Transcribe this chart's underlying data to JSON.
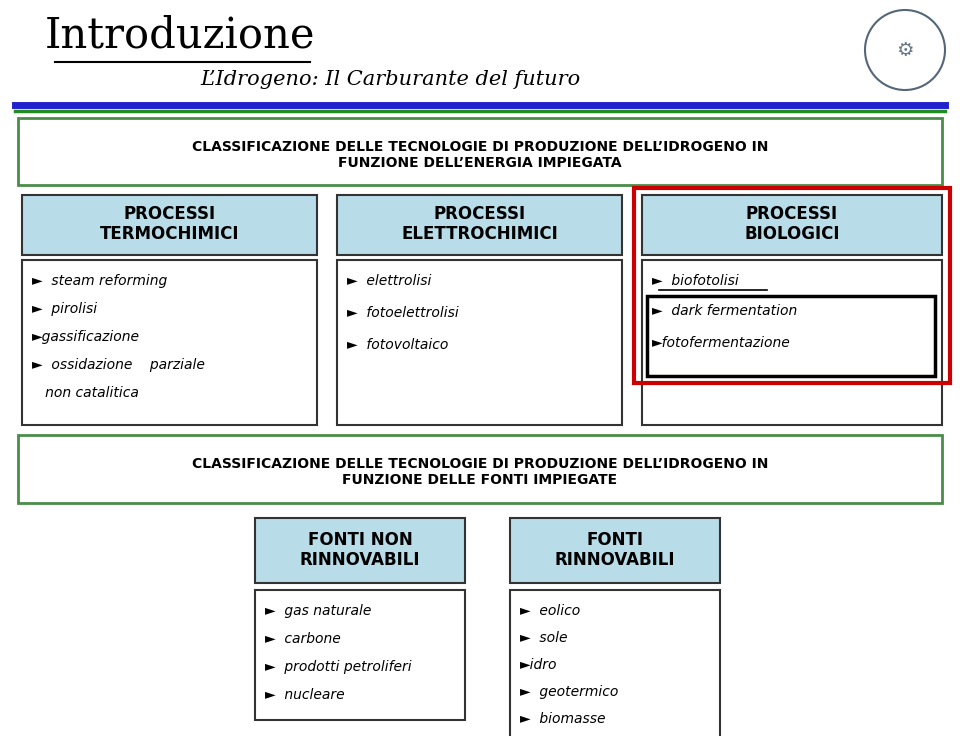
{
  "title": "Introduzione",
  "subtitle": "L’Idrogeno: Il Carburante del futuro",
  "bg_color": "#FFFFFF",
  "blue_line_color": "#2222CC",
  "green_line_color": "#228B22",
  "box1_title_line1": "CLASSIFICAZIONE DELLE TECNOLOGIE DI PRODUZIONE DELL’IDROGENO IN",
  "box1_title_line2": "FUNZIONE DELL’ENERGIA IMPIEGATA",
  "box2_title_line1": "CLASSIFICAZIONE DELLE TECNOLOGIE DI PRODUZIONE DELL’IDROGENO IN",
  "box2_title_line2": "FUNZIONE DELLE FONTI IMPIEGATE",
  "col1_header": "PROCESSI\nTERMOCHIMICI",
  "col2_header": "PROCESSI\nELETTROCHIMICI",
  "col3_header": "PROCESSI\nBIOLOGICI",
  "col1_items": [
    "►  steam reforming",
    "►  pirolisi",
    "►gassificazione",
    "►  ossidazione    parziale",
    "   non catalitica"
  ],
  "col2_items": [
    "►  elettrolisi",
    "►  fotoelettrolisi",
    "►  fotovoltaico"
  ],
  "col3_item0": "►  biofotolisi",
  "col3_item1": "►  dark fermentation",
  "col3_item2": "►fotofermentazione",
  "fonti_nonrin_header": "FONTI NON\nRINNOVABILI",
  "fonti_rin_header": "FONTI\nRINNOVABILI",
  "fonti_nonrin_items": [
    "►  gas naturale",
    "►  carbone",
    "►  prodotti petroliferi",
    "►  nucleare"
  ],
  "fonti_rin_items": [
    "►  eolico",
    "►  sole",
    "►idro",
    "►  geotermico",
    "►  biomasse"
  ],
  "light_blue": "#B8DCE8",
  "green_border": "#4A8C4A",
  "red_border": "#CC0000",
  "dark_border": "#333333",
  "text_dark": "#111111"
}
